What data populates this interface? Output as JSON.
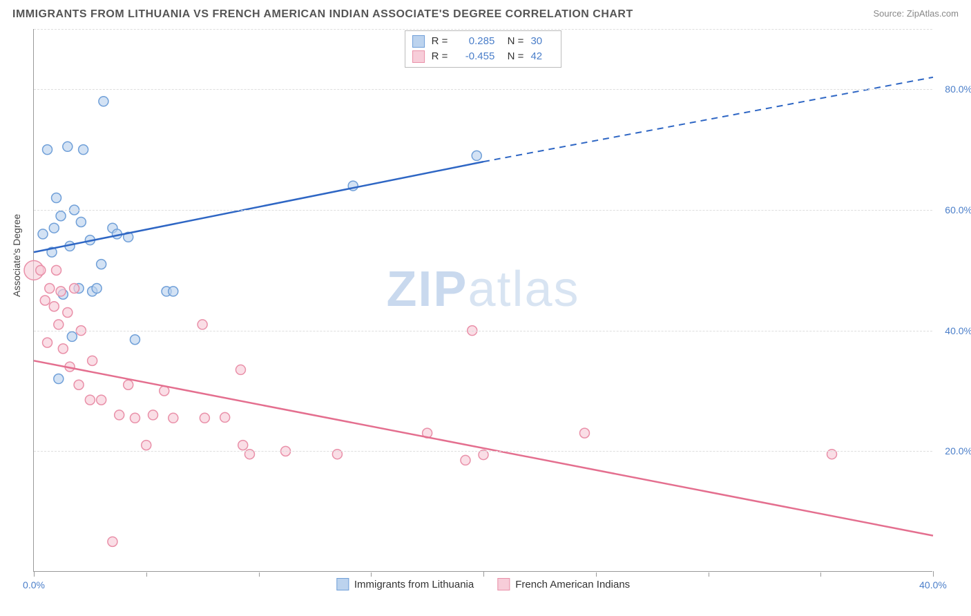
{
  "title": "IMMIGRANTS FROM LITHUANIA VS FRENCH AMERICAN INDIAN ASSOCIATE'S DEGREE CORRELATION CHART",
  "source_label": "Source: ",
  "source_name": "ZipAtlas.com",
  "ylabel": "Associate's Degree",
  "watermark_a": "ZIP",
  "watermark_b": "atlas",
  "chart": {
    "type": "scatter",
    "background_color": "#ffffff",
    "grid_color": "#dddddd",
    "axis_color": "#999999",
    "watermark_color": "#d8e4f2",
    "xlim": [
      0,
      40
    ],
    "ylim": [
      0,
      90
    ],
    "x_ticks": [
      0,
      20,
      40
    ],
    "x_tick_labels": [
      "0.0%",
      "",
      "40.0%"
    ],
    "x_minor_ticks": [
      5,
      10,
      15,
      25,
      30,
      35
    ],
    "y_ticks": [
      20,
      40,
      60,
      80
    ],
    "y_tick_labels": [
      "20.0%",
      "40.0%",
      "60.0%",
      "80.0%"
    ],
    "marker_radius": 7,
    "marker_stroke_width": 1.5,
    "line_width": 2.5,
    "series": [
      {
        "key": "s1",
        "name": "Immigrants from Lithuania",
        "fill": "#bcd3ee",
        "stroke": "#6f9fd8",
        "line_color": "#2e66c4",
        "R": "0.285",
        "N": "30",
        "trend": {
          "x1": 0,
          "y1": 53,
          "x2": 20,
          "y2": 68,
          "x_solid_end": 20,
          "x_dash_end": 40,
          "y_dash_end": 82
        },
        "points": [
          [
            0.4,
            56
          ],
          [
            0.6,
            70
          ],
          [
            0.8,
            53
          ],
          [
            0.9,
            57
          ],
          [
            1.0,
            62
          ],
          [
            1.1,
            32
          ],
          [
            1.2,
            59
          ],
          [
            1.3,
            46
          ],
          [
            1.5,
            70.5
          ],
          [
            1.6,
            54
          ],
          [
            1.7,
            39
          ],
          [
            1.8,
            60
          ],
          [
            2.0,
            47
          ],
          [
            2.1,
            58
          ],
          [
            2.2,
            70
          ],
          [
            2.5,
            55
          ],
          [
            2.6,
            46.5
          ],
          [
            2.8,
            47
          ],
          [
            3.0,
            51
          ],
          [
            3.1,
            78
          ],
          [
            3.5,
            57
          ],
          [
            3.7,
            56
          ],
          [
            4.2,
            55.5
          ],
          [
            4.5,
            38.5
          ],
          [
            5.9,
            46.5
          ],
          [
            6.2,
            46.5
          ],
          [
            14.2,
            64
          ],
          [
            19.7,
            69
          ]
        ]
      },
      {
        "key": "s2",
        "name": "French American Indians",
        "fill": "#f7cdd9",
        "stroke": "#e98fa8",
        "line_color": "#e46f8f",
        "R": "-0.455",
        "N": "42",
        "trend": {
          "x1": 0,
          "y1": 35,
          "x2": 40,
          "y2": 6,
          "x_solid_end": 40,
          "x_dash_end": 40,
          "y_dash_end": 6
        },
        "points": [
          [
            0.3,
            50
          ],
          [
            0.5,
            45
          ],
          [
            0.6,
            38
          ],
          [
            0.7,
            47
          ],
          [
            0.9,
            44
          ],
          [
            1.0,
            50
          ],
          [
            1.1,
            41
          ],
          [
            1.2,
            46.5
          ],
          [
            1.3,
            37
          ],
          [
            1.5,
            43
          ],
          [
            1.6,
            34
          ],
          [
            1.8,
            47
          ],
          [
            2.0,
            31
          ],
          [
            2.1,
            40
          ],
          [
            2.5,
            28.5
          ],
          [
            2.6,
            35
          ],
          [
            3.0,
            28.5
          ],
          [
            3.5,
            5
          ],
          [
            3.8,
            26
          ],
          [
            4.2,
            31
          ],
          [
            4.5,
            25.5
          ],
          [
            5.0,
            21
          ],
          [
            5.3,
            26
          ],
          [
            5.8,
            30
          ],
          [
            6.2,
            25.5
          ],
          [
            7.5,
            41
          ],
          [
            7.6,
            25.5
          ],
          [
            8.5,
            25.6
          ],
          [
            9.2,
            33.5
          ],
          [
            9.3,
            21
          ],
          [
            9.6,
            19.5
          ],
          [
            11.2,
            20
          ],
          [
            13.5,
            19.5
          ],
          [
            17.5,
            23
          ],
          [
            19.2,
            18.5
          ],
          [
            19.5,
            40
          ],
          [
            20.0,
            19.4
          ],
          [
            24.5,
            23
          ],
          [
            35.5,
            19.5
          ]
        ],
        "big_point": {
          "x": 0,
          "y": 50,
          "r": 14
        }
      }
    ],
    "legend_bottom": [
      {
        "label": "Immigrants from Lithuania",
        "fill": "#bcd3ee",
        "stroke": "#6f9fd8"
      },
      {
        "label": "French American Indians",
        "fill": "#f7cdd9",
        "stroke": "#e98fa8"
      }
    ]
  }
}
